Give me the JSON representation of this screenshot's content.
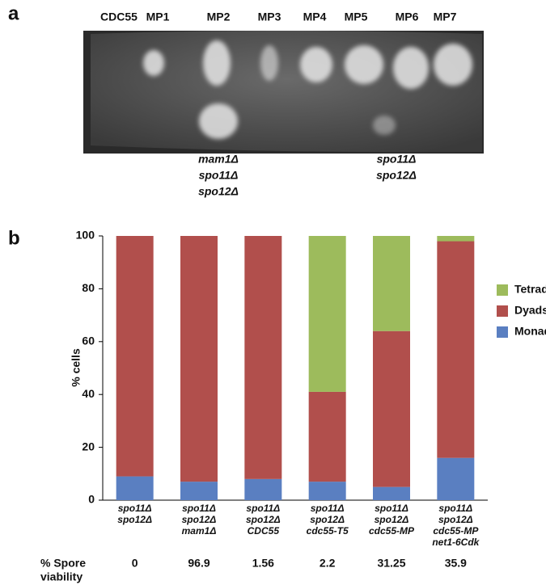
{
  "panel_a": {
    "letter": "a",
    "columns": [
      "CDC55",
      "MP1",
      "MP2",
      "MP3",
      "MP4",
      "MP5",
      "MP6",
      "MP7"
    ],
    "genotypes": [
      [
        "mam1Δ",
        "spo11Δ",
        "spo12Δ"
      ],
      [
        "spo11Δ",
        "spo12Δ"
      ]
    ]
  },
  "chart_data": {
    "type": "stacked_bar",
    "letter": "b",
    "y_label": "% cells",
    "categories": [
      [
        "spo11Δ",
        "spo12Δ"
      ],
      [
        "spo11Δ",
        "spo12Δ",
        "mam1Δ"
      ],
      [
        "spo11Δ",
        "spo12Δ",
        "CDC55"
      ],
      [
        "spo11Δ",
        "spo12Δ",
        "cdc55-T5"
      ],
      [
        "spo11Δ",
        "spo12Δ",
        "cdc55-MP"
      ],
      [
        "spo11Δ",
        "spo12Δ",
        "cdc55-MP",
        "net1-6Cdk"
      ]
    ],
    "series": [
      {
        "name": "Monads",
        "color": "#5a7fc1",
        "values": [
          9,
          7,
          8,
          7,
          5,
          16
        ]
      },
      {
        "name": "Dyads",
        "color": "#b14f4c",
        "values": [
          91,
          93,
          92,
          34,
          59,
          82
        ]
      },
      {
        "name": "Tetrads",
        "color": "#9dbb5c",
        "values": [
          0,
          0,
          0,
          59,
          36,
          2
        ]
      }
    ],
    "ylim": [
      0,
      100
    ],
    "yticks": [
      0,
      20,
      40,
      60,
      80,
      100
    ],
    "spore_viability": {
      "label": [
        "% Spore",
        "viability"
      ],
      "values": [
        0,
        96.9,
        1.56,
        2.2,
        31.25,
        35.9
      ]
    }
  }
}
